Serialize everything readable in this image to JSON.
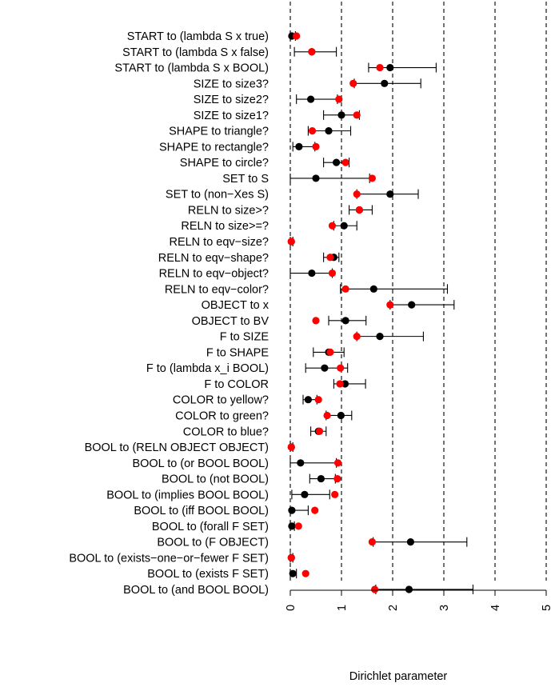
{
  "chart_data": {
    "type": "scatter",
    "xlabel": "Dirichlet parameter",
    "ylabel": "",
    "xlim": [
      0,
      5
    ],
    "x_ticks": [
      "0",
      "1",
      "2",
      "3",
      "4",
      "5"
    ],
    "grid": "dashed vertical lines at integer ticks",
    "colors": {
      "black_series": "#000000",
      "red_series": "#ff0000"
    },
    "categories": [
      "START to (lambda S x true)",
      "START to (lambda S x false)",
      "START to (lambda S x BOOL)",
      "SIZE to size3?",
      "SIZE to size2?",
      "SIZE to size1?",
      "SHAPE to triangle?",
      "SHAPE to rectangle?",
      "SHAPE to circle?",
      "SET to S",
      "SET to (non−Xes S)",
      "RELN to size>?",
      "RELN to size>=?",
      "RELN to eqv−size?",
      "RELN to eqv−shape?",
      "RELN to eqv−object?",
      "RELN to eqv−color?",
      "OBJECT to x",
      "OBJECT to BV",
      "F to SIZE",
      "F to SHAPE",
      "F to (lambda x_i BOOL)",
      "F to COLOR",
      "COLOR to yellow?",
      "COLOR to green?",
      "COLOR to blue?",
      "BOOL to (RELN OBJECT OBJECT)",
      "BOOL to (or BOOL BOOL)",
      "BOOL to (not BOOL)",
      "BOOL to (implies BOOL BOOL)",
      "BOOL to (iff BOOL BOOL)",
      "BOOL to (forall F SET)",
      "BOOL to (F OBJECT)",
      "BOOL to (exists−one−or−fewer F SET)",
      "BOOL to (exists F SET)",
      "BOOL to (and BOOL BOOL)"
    ],
    "series": [
      {
        "color": "#000000",
        "values": [
          0.03,
          0.42,
          1.95,
          1.84,
          0.4,
          1.0,
          0.75,
          0.17,
          0.9,
          0.5,
          1.95,
          1.35,
          1.05,
          0.02,
          0.85,
          0.42,
          1.63,
          2.37,
          1.08,
          1.75,
          0.75,
          0.67,
          1.07,
          0.35,
          0.99,
          0.55,
          0.02,
          0.2,
          0.6,
          0.28,
          0.03,
          0.03,
          2.35,
          0.02,
          0.05,
          2.32
        ],
        "lower": [
          0.0,
          0.08,
          1.53,
          1.25,
          0.12,
          0.65,
          0.35,
          0.05,
          0.65,
          0.0,
          1.3,
          1.15,
          0.85,
          0.0,
          0.65,
          0.0,
          0.98,
          1.95,
          0.75,
          1.3,
          0.45,
          0.3,
          0.85,
          0.25,
          0.7,
          0.4,
          0.0,
          0.0,
          0.38,
          0.03,
          0.0,
          0.0,
          1.62,
          0.0,
          0.0,
          1.67
        ],
        "upper": [
          0.1,
          0.9,
          2.85,
          2.55,
          0.92,
          1.35,
          1.18,
          0.48,
          1.15,
          1.55,
          2.5,
          1.6,
          1.3,
          0.05,
          0.95,
          0.82,
          3.07,
          3.2,
          1.48,
          2.6,
          1.05,
          1.12,
          1.47,
          0.52,
          1.2,
          0.7,
          0.05,
          0.9,
          0.88,
          0.77,
          0.35,
          0.08,
          3.45,
          0.05,
          0.12,
          3.57
        ]
      },
      {
        "color": "#ff0000",
        "values": [
          0.12,
          0.42,
          1.75,
          1.23,
          0.95,
          1.3,
          0.43,
          0.5,
          1.08,
          1.6,
          1.3,
          1.35,
          0.82,
          0.02,
          0.78,
          0.82,
          1.08,
          1.95,
          0.5,
          1.3,
          0.78,
          0.98,
          0.97,
          0.55,
          0.72,
          0.57,
          0.02,
          0.93,
          0.92,
          0.87,
          0.48,
          0.16,
          1.6,
          0.02,
          0.3,
          1.65
        ]
      }
    ]
  }
}
